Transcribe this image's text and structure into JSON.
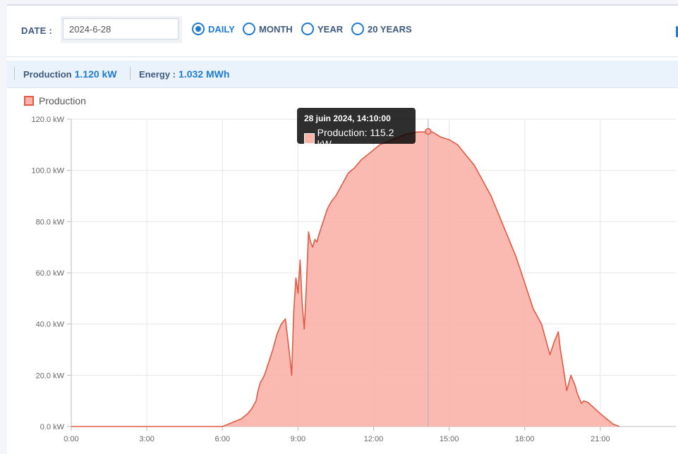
{
  "filters": {
    "date_label": "DATE :",
    "date_value": "2024-6-28",
    "options": [
      {
        "label": "DAILY",
        "selected": true
      },
      {
        "label": "MONTH",
        "selected": false
      },
      {
        "label": "YEAR",
        "selected": false
      },
      {
        "label": "20 YEARS",
        "selected": false
      }
    ]
  },
  "summary": {
    "production_label": "Production",
    "production_value": "1.120 kW",
    "energy_label": "Energy :",
    "energy_value": "1.032 MWh"
  },
  "tooltip": {
    "title": "28 juin 2024, 14:10:00",
    "text": "Production: 115.2 kW"
  },
  "colors": {
    "accent": "#1f7ad1",
    "series_line": "#e05a44",
    "series_fill": "#f9b3a8"
  },
  "chart_data": {
    "type": "area",
    "title": "",
    "xlabel": "",
    "ylabel": "",
    "legend": {
      "entries": [
        "Production"
      ],
      "placement": "top-left"
    },
    "grid": true,
    "ylim": [
      0,
      120
    ],
    "yticks": [
      "0.0 kW",
      "20.0 kW",
      "40.0 kW",
      "60.0 kW",
      "80.0 kW",
      "100.0 kW",
      "120.0 kW"
    ],
    "xlim": [
      "0:00",
      "24:00"
    ],
    "xticks": [
      "0:00",
      "3:00",
      "6:00",
      "9:00",
      "12:00",
      "15:00",
      "18:00",
      "21:00"
    ],
    "highlight": {
      "x": "14:10",
      "y": 115.2
    },
    "series": [
      {
        "name": "Production",
        "x": [
          "0:00",
          "6:00",
          "6:15",
          "6:30",
          "6:45",
          "7:00",
          "7:10",
          "7:20",
          "7:25",
          "7:30",
          "7:40",
          "7:50",
          "8:00",
          "8:10",
          "8:20",
          "8:30",
          "8:40",
          "8:45",
          "8:50",
          "8:55",
          "9:00",
          "9:05",
          "9:10",
          "9:15",
          "9:20",
          "9:25",
          "9:30",
          "9:35",
          "9:40",
          "9:45",
          "9:50",
          "10:00",
          "10:10",
          "10:20",
          "10:30",
          "10:40",
          "10:50",
          "11:00",
          "11:15",
          "11:30",
          "11:45",
          "12:00",
          "12:15",
          "12:30",
          "12:45",
          "13:00",
          "13:15",
          "13:30",
          "13:45",
          "14:00",
          "14:10",
          "14:20",
          "14:40",
          "15:00",
          "15:20",
          "15:40",
          "16:00",
          "16:20",
          "16:40",
          "17:00",
          "17:20",
          "17:40",
          "18:00",
          "18:20",
          "18:40",
          "19:00",
          "19:10",
          "19:20",
          "19:25",
          "19:30",
          "19:40",
          "19:50",
          "20:00",
          "20:05",
          "20:10",
          "20:15",
          "20:20",
          "20:30",
          "20:40",
          "21:00",
          "21:15",
          "21:30",
          "21:45"
        ],
        "y": [
          0,
          0,
          1,
          2,
          3,
          5,
          7,
          10,
          14,
          17,
          20,
          25,
          30,
          36,
          40,
          42,
          28,
          20,
          45,
          58,
          52,
          65,
          48,
          38,
          55,
          76,
          72,
          70,
          73,
          72,
          75,
          80,
          85,
          88,
          90,
          93,
          96,
          99,
          101,
          104,
          106,
          108,
          110,
          111,
          112,
          113,
          114,
          114.5,
          115,
          115,
          115.2,
          115,
          113,
          112,
          110,
          106,
          102,
          96,
          90,
          82,
          74,
          66,
          56,
          46,
          40,
          28,
          33,
          37,
          30,
          25,
          14,
          20,
          16,
          13,
          11,
          9,
          10,
          9.5,
          8,
          5,
          3,
          1,
          0
        ]
      }
    ]
  }
}
